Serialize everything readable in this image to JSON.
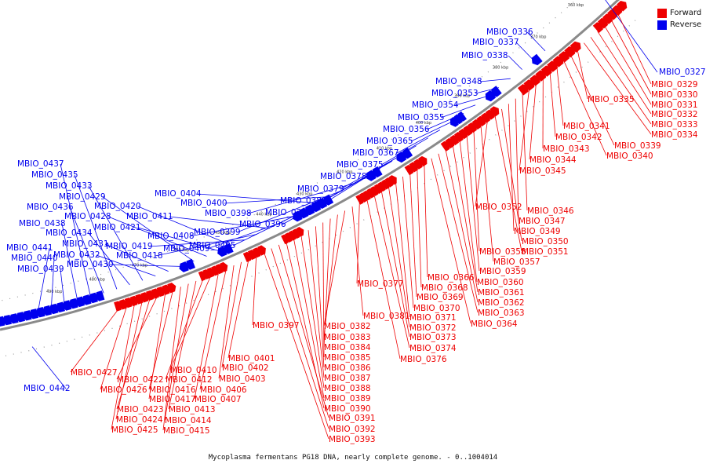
{
  "caption": "Mycoplasma fermentans PG18 DNA, nearly complete genome. - 0..1004014",
  "legend": [
    {
      "label": "Forward",
      "color": "#ee0000"
    },
    {
      "label": "Reverse",
      "color": "#0000ee"
    }
  ],
  "colors": {
    "forward": "#ee0000",
    "reverse": "#0000ee",
    "backbone": "#8a8a8a"
  },
  "ticks": [
    "360 kbp",
    "370 kbp",
    "380 kbp",
    "390 kbp",
    "400 kbp",
    "410 kbp",
    "420 kbp",
    "430 kbp",
    "440 kbp",
    "450 kbp",
    "460 kbp",
    "470 kbp",
    "480 kbp",
    "490 kbp"
  ],
  "reverse_labels": [
    "MBIO_0336",
    "MBIO_0337",
    "MBIO_0338",
    "MBIO_0348",
    "MBIO_0353",
    "MBIO_0354",
    "MBIO_0355",
    "MBIO_0356",
    "MBIO_0365",
    "MBIO_0367",
    "MBIO_0375",
    "MBIO_0378",
    "MBIO_0379",
    "MBIO_0380",
    "MBIO_0395",
    "MBIO_0396",
    "MBIO_0398",
    "MBIO_0399",
    "MBIO_0400",
    "MBIO_0404",
    "MBIO_0405",
    "MBIO_0408",
    "MBIO_0409",
    "MBIO_0411",
    "MBIO_0418",
    "MBIO_0419",
    "MBIO_0420",
    "MBIO_0421",
    "MBIO_0428",
    "MBIO_0429",
    "MBIO_0430",
    "MBIO_0431",
    "MBIO_0432",
    "MBIO_0433",
    "MBIO_0434",
    "MBIO_0435",
    "MBIO_0436",
    "MBIO_0437",
    "MBIO_0438",
    "MBIO_0439",
    "MBIO_0440",
    "MBIO_0441",
    "MBIO_0327",
    "MBIO_0442"
  ],
  "forward_labels": [
    "MBIO_0329",
    "MBIO_0330",
    "MBIO_0331",
    "MBIO_0332",
    "MBIO_0333",
    "MBIO_0334",
    "MBIO_0335",
    "MBIO_0339",
    "MBIO_0340",
    "MBIO_0341",
    "MBIO_0342",
    "MBIO_0343",
    "MBIO_0344",
    "MBIO_0345",
    "MBIO_0346",
    "MBIO_0347",
    "MBIO_0349",
    "MBIO_0350",
    "MBIO_0351",
    "MBIO_0352",
    "MBIO_0357",
    "MBIO_0358",
    "MBIO_0359",
    "MBIO_0360",
    "MBIO_0361",
    "MBIO_0362",
    "MBIO_0363",
    "MBIO_0364",
    "MBIO_0366",
    "MBIO_0368",
    "MBIO_0369",
    "MBIO_0370",
    "MBIO_0371",
    "MBIO_0372",
    "MBIO_0373",
    "MBIO_0374",
    "MBIO_0376",
    "MBIO_0377",
    "MBIO_0381",
    "MBIO_0382",
    "MBIO_0383",
    "MBIO_0384",
    "MBIO_0385",
    "MBIO_0386",
    "MBIO_0387",
    "MBIO_0388",
    "MBIO_0389",
    "MBIO_0390",
    "MBIO_0391",
    "MBIO_0392",
    "MBIO_0393",
    "MBIO_0397",
    "MBIO_0401",
    "MBIO_0402",
    "MBIO_0403",
    "MBIO_0406",
    "MBIO_0407",
    "MBIO_0410",
    "MBIO_0412",
    "MBIO_0413",
    "MBIO_0414",
    "MBIO_0415",
    "MBIO_0416",
    "MBIO_0417",
    "MBIO_0422",
    "MBIO_0423",
    "MBIO_0424",
    "MBIO_0425",
    "MBIO_0426",
    "MBIO_0427"
  ]
}
